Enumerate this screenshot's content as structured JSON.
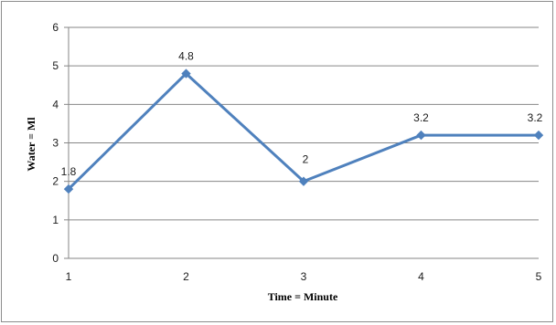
{
  "chart_data": {
    "type": "line",
    "title": "",
    "xlabel": "Time = Minute",
    "ylabel": "Water = Ml",
    "x": [
      1,
      2,
      3,
      4,
      5
    ],
    "x_tick_labels": [
      "1",
      "2",
      "3",
      "4",
      "5"
    ],
    "ylim": [
      0,
      6
    ],
    "y_ticks": [
      0,
      1,
      2,
      3,
      4,
      5,
      6
    ],
    "y_tick_labels": [
      "0",
      "1",
      "2",
      "3",
      "4",
      "5",
      "6"
    ],
    "grid": "horizontal",
    "legend": "none",
    "series": [
      {
        "values": [
          1.8,
          4.8,
          2,
          3.2,
          3.2
        ],
        "data_labels": [
          "1.8",
          "4.8",
          "2",
          "3.2",
          "3.2"
        ],
        "color": "#4f81bd",
        "marker": "diamond"
      }
    ],
    "colors": {
      "line": "#4f81bd",
      "grid": "#868686",
      "axis": "#868686",
      "frame": "#8c8c8c"
    }
  }
}
